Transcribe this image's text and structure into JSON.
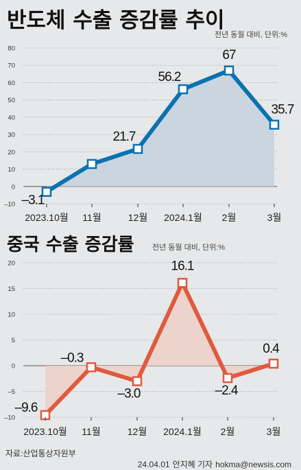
{
  "chart_data": [
    {
      "type": "line",
      "title": "반도체 수출 증감률 추이",
      "subtitle": "전년 동월 대비, 단위:%",
      "categories": [
        "2023.10월",
        "11월",
        "12월",
        "2024.1월",
        "2월",
        "3월"
      ],
      "values": [
        -3.1,
        13,
        21.7,
        56.2,
        67,
        35.7
      ],
      "value_labels": [
        "-3.1",
        "",
        "21.7",
        "56.2",
        "67",
        "35.7"
      ],
      "ylim": [
        -10,
        80
      ],
      "yticks": [
        -10,
        0,
        10,
        20,
        30,
        40,
        50,
        60,
        70,
        80
      ],
      "grid": true,
      "color": "#0b72b0",
      "fill": "#c8d3df"
    },
    {
      "type": "line",
      "title": "중국 수출 증감률",
      "subtitle": "전년 동월 대비, 단위:%",
      "categories": [
        "2023.10월",
        "11월",
        "12월",
        "2024.1월",
        "2월",
        "3월"
      ],
      "values": [
        -9.6,
        -0.3,
        -3.0,
        16.1,
        -2.4,
        0.4
      ],
      "value_labels": [
        "-9.6",
        "-0.3",
        "-3.0",
        "16.1",
        "-2.4",
        "0.4"
      ],
      "ylim": [
        -10,
        20
      ],
      "yticks": [
        -10,
        -5,
        0,
        5,
        10,
        15,
        20
      ],
      "grid": true,
      "color": "#df5a3e",
      "fill": "#ecd2c9"
    }
  ],
  "source": "자료:산업통상자원부",
  "credit": {
    "date": "24.04.01",
    "author": "안지혜 기자",
    "email": "hokma@newsis.com"
  }
}
